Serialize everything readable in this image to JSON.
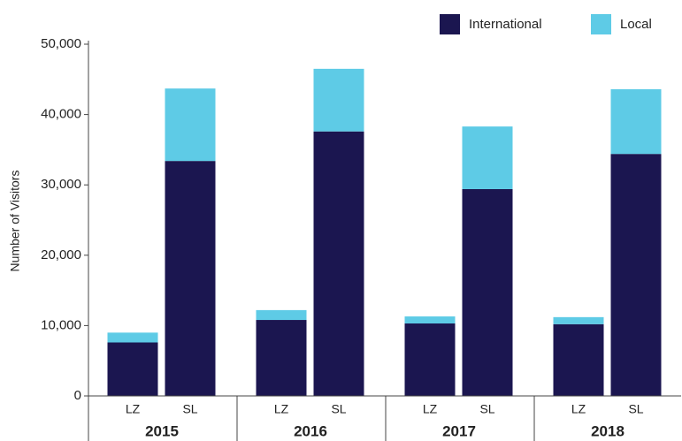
{
  "chart_data": {
    "type": "stacked_bar",
    "y_label": "Number of Visitors",
    "categories": [
      "LZ",
      "SL",
      "LZ",
      "SL",
      "LZ",
      "SL",
      "LZ",
      "SL"
    ],
    "groups": [
      "2015",
      "2016",
      "2017",
      "2018"
    ],
    "series": [
      {
        "name": "International",
        "color": "#1b1650",
        "values": [
          7600,
          33400,
          10800,
          37600,
          10300,
          29400,
          10200,
          34400
        ]
      },
      {
        "name": "Local",
        "color": "#5ecbe6",
        "values": [
          1400,
          10300,
          1400,
          8900,
          1000,
          8900,
          1000,
          9200
        ]
      }
    ],
    "ylim": [
      0,
      50000
    ],
    "yticks": [
      0,
      {
        "value": 10000,
        "label": "10,000"
      },
      {
        "value": 20000,
        "label": "20,000"
      },
      {
        "value": 30000,
        "label": "30,000"
      },
      {
        "value": 40000,
        "label": "40,000"
      },
      {
        "value": 50000,
        "label": "50,000"
      }
    ],
    "legend": "top-right"
  }
}
